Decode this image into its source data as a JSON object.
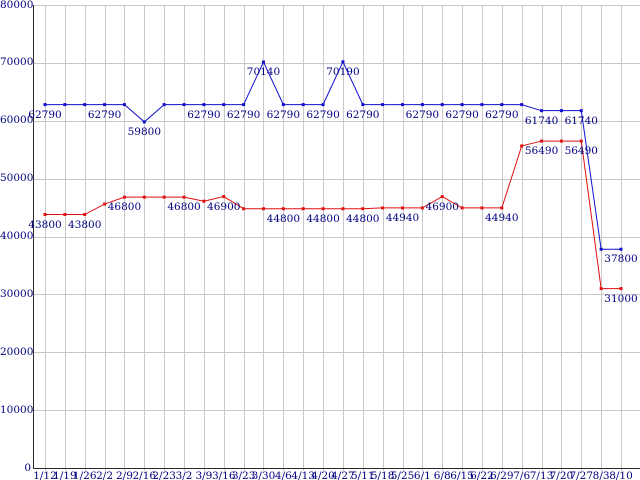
{
  "chart_data": {
    "type": "line",
    "title": "",
    "xlabel": "",
    "ylabel": "",
    "ylim": [
      0,
      80000
    ],
    "grid": true,
    "legend_position": "none",
    "background": "#ffffff",
    "grid_color": "#c8c8c8",
    "axis_color": "#2a2a2a",
    "label_color": "#000080",
    "x_labels": [
      "1/12",
      "1/19",
      "1/26",
      "2/2",
      "2/9",
      "2/16",
      "2/23",
      "3/2",
      "3/9",
      "3/16",
      "3/23",
      "3/30",
      "4/6",
      "4/13",
      "4/20",
      "4/27",
      "5/11",
      "5/18",
      "5/25",
      "6/1",
      "6/8",
      "6/15",
      "6/22",
      "6/29",
      "7/6",
      "7/13",
      "7/20",
      "7/27",
      "8/3",
      "8/10"
    ],
    "y_ticks": [
      0,
      10000,
      20000,
      30000,
      40000,
      50000,
      60000,
      70000,
      80000
    ],
    "series": [
      {
        "name": "series-blue",
        "color": "#1010cc",
        "values": [
          62790,
          62790,
          62790,
          62790,
          62790,
          59800,
          62790,
          62790,
          62790,
          62790,
          62790,
          70140,
          62790,
          62790,
          62790,
          70190,
          62790,
          62790,
          62790,
          62790,
          62790,
          62790,
          62790,
          62790,
          62790,
          61740,
          61740,
          61740,
          37800,
          37800
        ],
        "point_labels": [
          "62790",
          null,
          null,
          "62790",
          null,
          "59800",
          null,
          null,
          "62790",
          null,
          "62790",
          "70140",
          "62790",
          null,
          "62790",
          "70190",
          "62790",
          null,
          null,
          "62790",
          null,
          "62790",
          null,
          "62790",
          null,
          "61740",
          null,
          "61740",
          null,
          "37800"
        ]
      },
      {
        "name": "series-red",
        "color": "#e01010",
        "values": [
          43800,
          43800,
          43800,
          45600,
          46800,
          46800,
          46800,
          46800,
          46100,
          46900,
          44800,
          44800,
          44800,
          44800,
          44800,
          44800,
          44800,
          44940,
          44940,
          44940,
          46900,
          44940,
          44940,
          44940,
          55650,
          56490,
          56490,
          56490,
          31000,
          31000
        ],
        "point_labels": [
          "43800",
          null,
          "43800",
          null,
          "46800",
          null,
          null,
          "46800",
          null,
          "46900",
          null,
          null,
          "44800",
          null,
          "44800",
          null,
          "44800",
          null,
          "44940",
          null,
          "46900",
          null,
          null,
          "44940",
          null,
          "56490",
          null,
          "56490",
          null,
          "31000"
        ]
      }
    ]
  }
}
